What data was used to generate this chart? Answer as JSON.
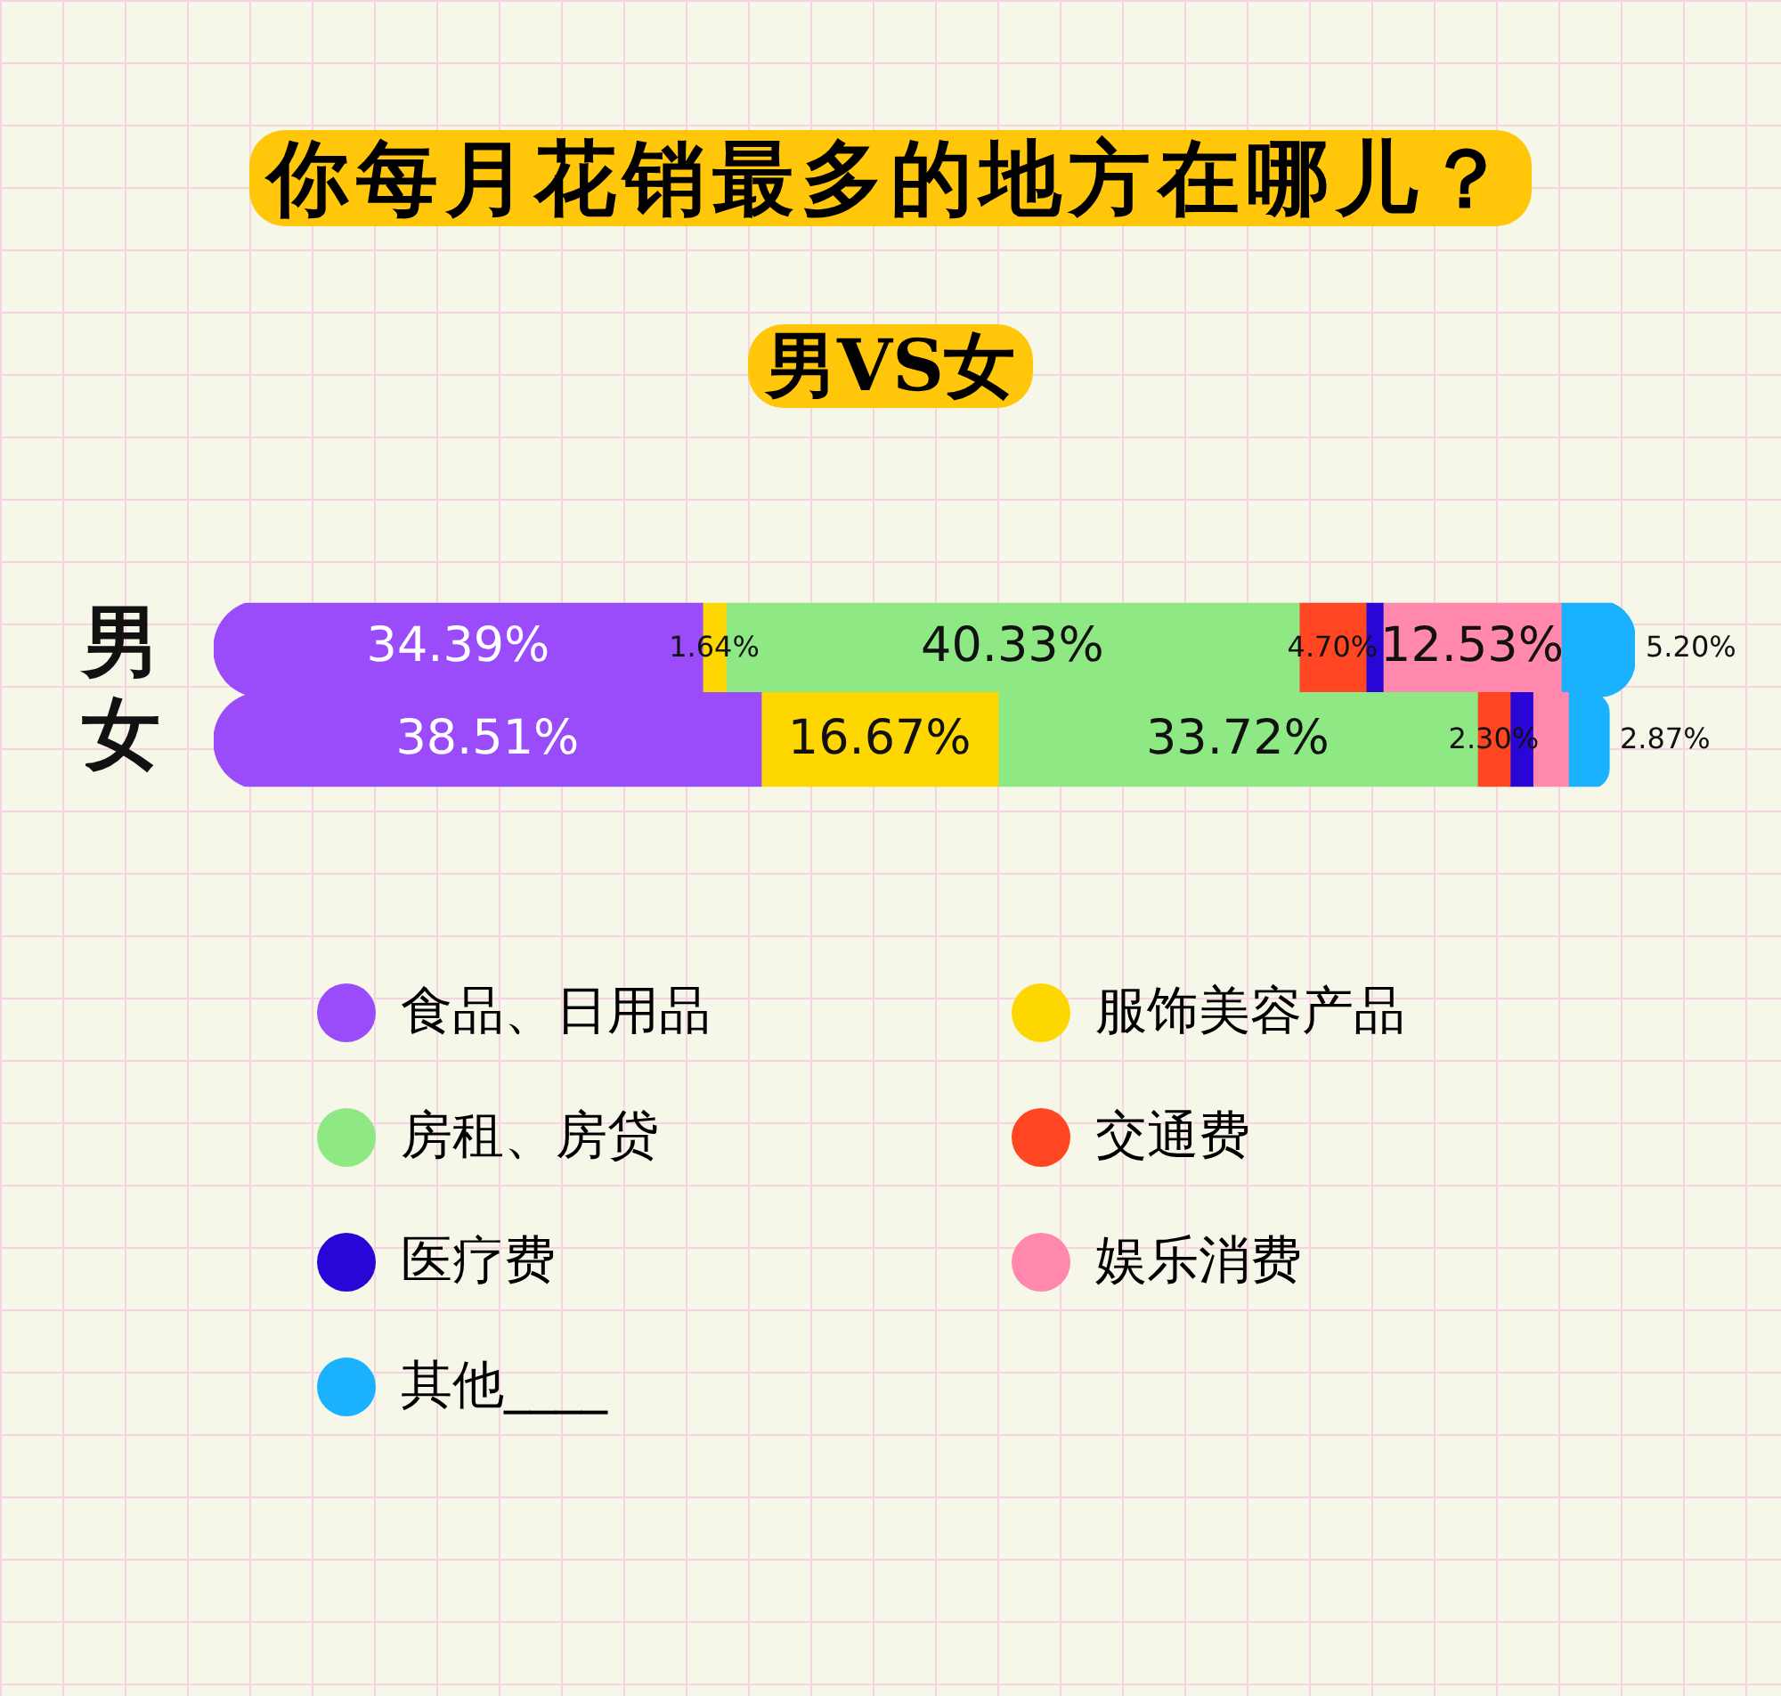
{
  "chart_data": {
    "type": "bar",
    "orientation": "horizontal",
    "stacked": true,
    "title": "你每月花销最多的地方在哪儿？",
    "subtitle": "男VS女",
    "categories": [
      "男",
      "女"
    ],
    "legend": "bottom",
    "grid": false,
    "series": [
      {
        "name": "食品、日用品",
        "color": "#9a4cfa",
        "values": [
          34.39,
          38.51
        ],
        "value_labels": [
          "34.39%",
          "38.51%"
        ]
      },
      {
        "name": "服饰美容产品",
        "color": "#ffd700",
        "values": [
          1.64,
          16.67
        ],
        "value_labels": [
          "1.64%",
          "16.67%"
        ]
      },
      {
        "name": "房租、房贷",
        "color": "#8ee883",
        "values": [
          40.33,
          33.72
        ],
        "value_labels": [
          "40.33%",
          "33.72%"
        ]
      },
      {
        "name": "交通费",
        "color": "#ff4521",
        "values": [
          4.7,
          2.3
        ],
        "value_labels": [
          "4.70%",
          "2.30%"
        ]
      },
      {
        "name": "医疗费",
        "color": "#2a06d6",
        "values": [
          1.2,
          1.6
        ],
        "value_labels": [
          null,
          null
        ]
      },
      {
        "name": "娱乐消费",
        "color": "#ff88ac",
        "values": [
          12.53,
          2.5
        ],
        "value_labels": [
          "12.53%",
          null
        ]
      },
      {
        "name": "其他____",
        "color": "#1ab1ff",
        "values": [
          5.2,
          2.87
        ],
        "value_labels": [
          "5.20%",
          "2.87%"
        ]
      }
    ]
  }
}
